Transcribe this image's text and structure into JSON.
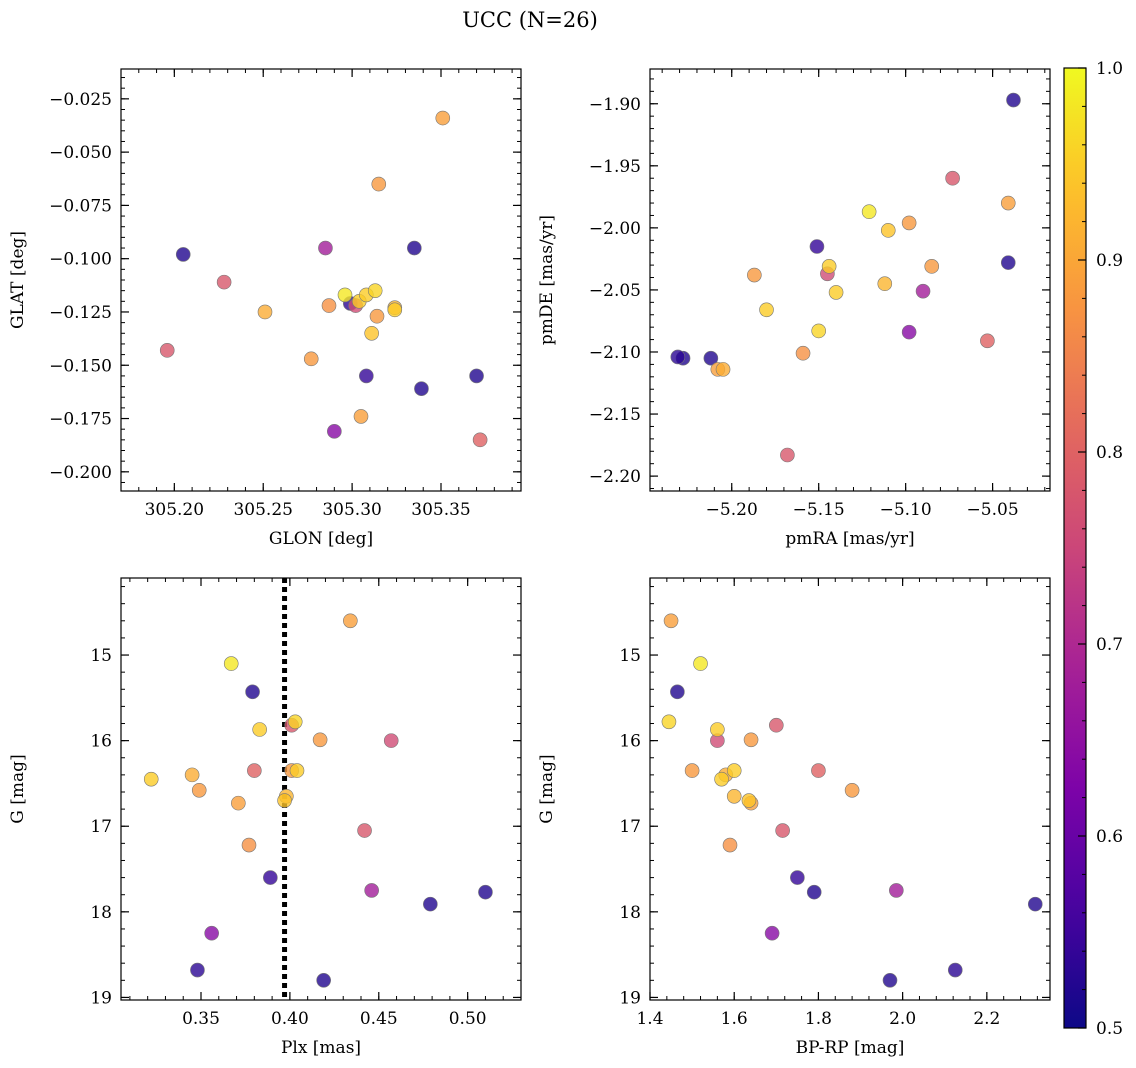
{
  "figure": {
    "suptitle": "UCC (N=26)"
  },
  "colorbar": {
    "range": [
      0.5,
      1.0
    ],
    "ticks": [
      "0.5",
      "0.6",
      "0.7",
      "0.8",
      "0.9",
      "1.0"
    ],
    "colormap": "plasma"
  },
  "stars": [
    {
      "id": 1,
      "glon": 305.205,
      "glat": -0.098,
      "pmra": -5.228,
      "pmde": -2.105,
      "plx": 0.419,
      "g": 18.8,
      "bprp": 1.97,
      "p": 0.52
    },
    {
      "id": 2,
      "glon": 305.196,
      "glat": -0.143,
      "pmra": -5.168,
      "pmde": -2.183,
      "plx": 0.442,
      "g": 17.05,
      "bprp": 1.715,
      "p": 0.78
    },
    {
      "id": 3,
      "glon": 305.228,
      "glat": -0.111,
      "pmra": -5.073,
      "pmde": -1.96,
      "plx": 0.401,
      "g": 15.82,
      "bprp": 1.7,
      "p": 0.78
    },
    {
      "id": 4,
      "glon": 305.251,
      "glat": -0.125,
      "pmra": -5.205,
      "pmde": -2.114,
      "plx": 0.345,
      "g": 16.4,
      "bprp": 1.58,
      "p": 0.91
    },
    {
      "id": 5,
      "glon": 305.277,
      "glat": -0.147,
      "pmra": -5.187,
      "pmde": -2.038,
      "plx": 0.349,
      "g": 16.58,
      "bprp": 1.88,
      "p": 0.88
    },
    {
      "id": 6,
      "glon": 305.285,
      "glat": -0.095,
      "pmra": -5.09,
      "pmde": -2.051,
      "plx": 0.446,
      "g": 17.75,
      "bprp": 1.985,
      "p": 0.68
    },
    {
      "id": 7,
      "glon": 305.287,
      "glat": -0.122,
      "pmra": -5.159,
      "pmde": -2.101,
      "plx": 0.377,
      "g": 17.22,
      "bprp": 1.59,
      "p": 0.87
    },
    {
      "id": 8,
      "glon": 305.29,
      "glat": -0.181,
      "pmra": -5.098,
      "pmde": -2.084,
      "plx": 0.356,
      "g": 18.25,
      "bprp": 1.69,
      "p": 0.64
    },
    {
      "id": 9,
      "glon": 305.296,
      "glat": -0.117,
      "pmra": -5.121,
      "pmde": -1.987,
      "plx": 0.367,
      "g": 15.1,
      "bprp": 1.52,
      "p": 0.98
    },
    {
      "id": 10,
      "glon": 305.299,
      "glat": -0.121,
      "pmra": -5.231,
      "pmde": -2.104,
      "plx": 0.348,
      "g": 18.68,
      "bprp": 2.125,
      "p": 0.53
    },
    {
      "id": 11,
      "glon": 305.302,
      "glat": -0.122,
      "pmra": -5.145,
      "pmde": -2.037,
      "plx": 0.457,
      "g": 16.0,
      "bprp": 1.56,
      "p": 0.76
    },
    {
      "id": 12,
      "glon": 305.304,
      "glat": -0.12,
      "pmra": -5.14,
      "pmde": -2.052,
      "plx": 0.383,
      "g": 15.87,
      "bprp": 1.56,
      "p": 0.95
    },
    {
      "id": 13,
      "glon": 305.305,
      "glat": -0.174,
      "pmra": -5.208,
      "pmde": -2.114,
      "plx": 0.371,
      "g": 16.73,
      "bprp": 1.64,
      "p": 0.89
    },
    {
      "id": 14,
      "glon": 305.308,
      "glat": -0.155,
      "pmra": -5.151,
      "pmde": -2.015,
      "plx": 0.389,
      "g": 17.6,
      "bprp": 1.75,
      "p": 0.54
    },
    {
      "id": 15,
      "glon": 305.308,
      "glat": -0.117,
      "pmra": -5.144,
      "pmde": -2.031,
      "plx": 0.404,
      "g": 16.35,
      "bprp": 1.6,
      "p": 0.95
    },
    {
      "id": 16,
      "glon": 305.311,
      "glat": -0.135,
      "pmra": -5.11,
      "pmde": -2.002,
      "plx": 0.397,
      "g": 16.7,
      "bprp": 1.635,
      "p": 0.94
    },
    {
      "id": 17,
      "glon": 305.313,
      "glat": -0.115,
      "pmra": -5.15,
      "pmde": -2.083,
      "plx": 0.403,
      "g": 15.78,
      "bprp": 1.445,
      "p": 0.96
    },
    {
      "id": 18,
      "glon": 305.314,
      "glat": -0.127,
      "pmra": -5.085,
      "pmde": -2.031,
      "plx": 0.401,
      "g": 16.35,
      "bprp": 1.5,
      "p": 0.88
    },
    {
      "id": 19,
      "glon": 305.315,
      "glat": -0.065,
      "pmra": -5.098,
      "pmde": -1.996,
      "plx": 0.417,
      "g": 15.99,
      "bprp": 1.64,
      "p": 0.88
    },
    {
      "id": 20,
      "glon": 305.324,
      "glat": -0.123,
      "pmra": -5.112,
      "pmde": -2.045,
      "plx": 0.398,
      "g": 16.65,
      "bprp": 1.6,
      "p": 0.92
    },
    {
      "id": 21,
      "glon": 305.324,
      "glat": -0.124,
      "pmra": -5.18,
      "pmde": -2.066,
      "plx": 0.322,
      "g": 16.45,
      "bprp": 1.57,
      "p": 0.95
    },
    {
      "id": 22,
      "glon": 305.335,
      "glat": -0.095,
      "pmra": -5.212,
      "pmde": -2.105,
      "plx": 0.379,
      "g": 15.43,
      "bprp": 1.465,
      "p": 0.52
    },
    {
      "id": 23,
      "glon": 305.339,
      "glat": -0.161,
      "pmra": -5.041,
      "pmde": -2.028,
      "plx": 0.479,
      "g": 17.91,
      "bprp": 2.315,
      "p": 0.52
    },
    {
      "id": 24,
      "glon": 305.351,
      "glat": -0.034,
      "pmra": -5.041,
      "pmde": -1.98,
      "plx": 0.434,
      "g": 14.6,
      "bprp": 1.45,
      "p": 0.89
    },
    {
      "id": 25,
      "glon": 305.37,
      "glat": -0.155,
      "pmra": -5.038,
      "pmde": -1.897,
      "plx": 0.51,
      "g": 17.77,
      "bprp": 1.79,
      "p": 0.52
    },
    {
      "id": 26,
      "glon": 305.372,
      "glat": -0.185,
      "pmra": -5.053,
      "pmde": -2.091,
      "plx": 0.38,
      "g": 16.35,
      "bprp": 1.8,
      "p": 0.8
    }
  ],
  "chart_data": [
    {
      "type": "scatter",
      "xlabel": "GLON [deg]",
      "ylabel": "GLAT [deg]",
      "x_field": "glon",
      "y_field": "glat",
      "xlim": [
        305.17,
        305.395
      ],
      "ylim": [
        -0.209,
        -0.011
      ],
      "x_ticks": [
        305.2,
        305.25,
        305.3,
        305.35
      ],
      "x_tick_labels": [
        "305.20",
        "305.25",
        "305.30",
        "305.35"
      ],
      "y_ticks": [
        -0.025,
        -0.05,
        -0.075,
        -0.1,
        -0.125,
        -0.15,
        -0.175,
        -0.2
      ],
      "y_tick_labels": [
        "−0.025",
        "−0.050",
        "−0.075",
        "−0.100",
        "−0.125",
        "−0.150",
        "−0.175",
        "−0.200"
      ],
      "y_inverted": false
    },
    {
      "type": "scatter",
      "xlabel": "pmRA [mas/yr]",
      "ylabel": "pmDE [mas/yr]",
      "x_field": "pmra",
      "y_field": "pmde",
      "xlim": [
        -5.247,
        -5.017
      ],
      "ylim": [
        -2.212,
        -1.872
      ],
      "x_ticks": [
        -5.2,
        -5.15,
        -5.1,
        -5.05
      ],
      "x_tick_labels": [
        "−5.20",
        "−5.15",
        "−5.10",
        "−5.05"
      ],
      "y_ticks": [
        -1.9,
        -1.95,
        -2.0,
        -2.05,
        -2.1,
        -2.15,
        -2.2
      ],
      "y_tick_labels": [
        "−1.90",
        "−1.95",
        "−2.00",
        "−2.05",
        "−2.10",
        "−2.15",
        "−2.20"
      ],
      "y_inverted": false
    },
    {
      "type": "scatter",
      "xlabel": "Plx [mas]",
      "ylabel": "G [mag]",
      "x_field": "plx",
      "y_field": "g",
      "xlim": [
        0.305,
        0.53
      ],
      "ylim": [
        14.1,
        19.03
      ],
      "x_ticks": [
        0.35,
        0.4,
        0.45,
        0.5
      ],
      "x_tick_labels": [
        "0.35",
        "0.40",
        "0.45",
        "0.50"
      ],
      "y_ticks": [
        15,
        16,
        17,
        18,
        19
      ],
      "y_tick_labels": [
        "15",
        "16",
        "17",
        "18",
        "19"
      ],
      "y_inverted": true,
      "vline": 0.397
    },
    {
      "type": "scatter",
      "xlabel": "BP-RP [mag]",
      "ylabel": "G [mag]",
      "x_field": "bprp",
      "y_field": "g",
      "xlim": [
        1.4,
        2.35
      ],
      "ylim": [
        14.1,
        19.03
      ],
      "x_ticks": [
        1.4,
        1.6,
        1.8,
        2.0,
        2.2
      ],
      "x_tick_labels": [
        "1.4",
        "1.6",
        "1.8",
        "2.0",
        "2.2"
      ],
      "y_ticks": [
        15,
        16,
        17,
        18,
        19
      ],
      "y_tick_labels": [
        "15",
        "16",
        "17",
        "18",
        "19"
      ],
      "y_inverted": true
    }
  ]
}
